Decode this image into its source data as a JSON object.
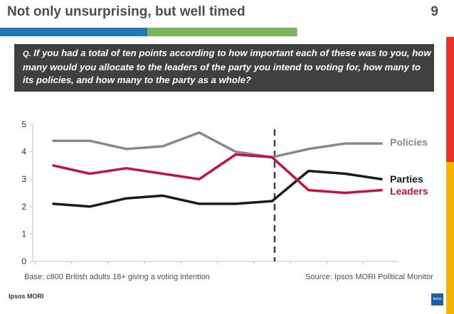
{
  "header": {
    "title": "Not only unsurprising, but well timed",
    "page_number": "9"
  },
  "question": {
    "prefix": "Q.",
    "text": "If you had a total of ten points according to how important each of these was to you, how many would you allocate to the leaders of the party you intend to voting for, how many to its policies, and how many to the party as a whole?"
  },
  "footer": {
    "base": "Base: c800 British adults 18+ giving a voting intention",
    "source": "Source: Ipsos MORI Political Monitor",
    "brand": "Ipsos MORI",
    "logo_text": "Ipsos"
  },
  "colors": {
    "accent_blue": "#1f78b4",
    "accent_green": "#7ab55c",
    "side_red": "#e8332a",
    "side_yellow": "#f5b400",
    "question_bg": "#404040"
  },
  "chart_data": {
    "type": "line",
    "x": [
      1,
      2,
      3,
      4,
      5,
      6,
      7,
      8,
      9,
      10
    ],
    "yticks": [
      "0",
      "1",
      "2",
      "3",
      "4",
      "5"
    ],
    "ylim": [
      0,
      5
    ],
    "grid": false,
    "divider_after_x": 7,
    "series": [
      {
        "name": "Policies",
        "color": "#888888",
        "values": [
          4.4,
          4.4,
          4.1,
          4.2,
          4.7,
          4.0,
          3.8,
          4.1,
          4.3,
          4.3
        ]
      },
      {
        "name": "Parties",
        "color": "#1a1a1a",
        "values": [
          2.1,
          2.0,
          2.3,
          2.4,
          2.1,
          2.1,
          2.2,
          3.3,
          3.2,
          3.0
        ]
      },
      {
        "name": "Leaders",
        "color": "#c0143c",
        "values": [
          3.5,
          3.2,
          3.4,
          3.2,
          3.0,
          3.9,
          3.8,
          2.6,
          2.5,
          2.6
        ]
      }
    ]
  }
}
